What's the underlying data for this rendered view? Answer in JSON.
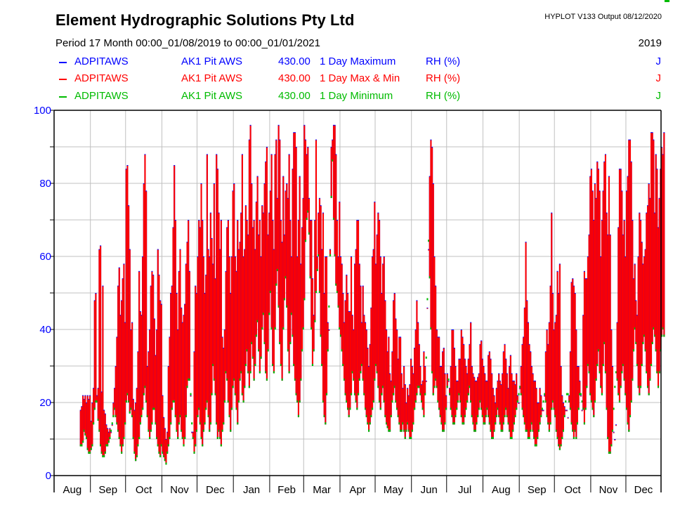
{
  "header": {
    "title": "Element Hydrographic Solutions Pty Ltd",
    "software": "HYPLOT V133  Output 08/12/2020",
    "period": "Period   17 Month  00:00_01/08/2019 to 00:00_01/01/2021",
    "year": "2019"
  },
  "legend": [
    {
      "site": "ADPITAWS",
      "name": "AK1 Pit AWS",
      "variable": "430.00",
      "description": "1 Day Maximum",
      "unit": "RH (%)",
      "flag": "J",
      "color": "#0000ff"
    },
    {
      "site": "ADPITAWS",
      "name": "AK1 Pit AWS",
      "variable": "430.00",
      "description": "1 Day Max & Min",
      "unit": "RH (%)",
      "flag": "J",
      "color": "#ff0000"
    },
    {
      "site": "ADPITAWS",
      "name": "AK1 Pit AWS",
      "variable": "430.00",
      "description": "1 Day Minimum",
      "unit": "RH (%)",
      "flag": "J",
      "color": "#00bb00"
    }
  ],
  "chart_data": {
    "type": "bar",
    "title": "Element Hydrographic Solutions Pty Ltd",
    "xlabel": "",
    "ylabel": "RH (%)",
    "ylim": [
      0,
      100
    ],
    "yticks": [
      0,
      20,
      40,
      60,
      80,
      100
    ],
    "ytick_labels": [
      "0",
      "20",
      "40",
      "60",
      "80",
      "100"
    ],
    "minor_yticks": [
      10,
      30,
      50,
      70,
      90
    ],
    "xlim_days": [
      0,
      518
    ],
    "month_labels": [
      "Aug",
      "Sep",
      "Oct",
      "Nov",
      "Dec",
      "Jan",
      "Feb",
      "Mar",
      "Apr",
      "May",
      "Jun",
      "Jul",
      "Aug",
      "Sep",
      "Oct",
      "Nov",
      "Dec"
    ],
    "month_start_days": [
      0,
      31,
      61,
      92,
      122,
      153,
      184,
      213,
      244,
      274,
      305,
      335,
      366,
      397,
      427,
      458,
      488
    ],
    "grid": true,
    "legend_position": "top",
    "series_colors": {
      "max": "#0000ff",
      "maxmin": "#ff0000",
      "min": "#00bb00"
    },
    "data_start_day": 22,
    "daily_max": [
      18,
      19,
      22,
      21,
      22,
      20,
      22,
      21,
      22,
      15,
      20,
      24,
      48,
      50,
      22,
      24,
      62,
      63,
      23,
      52,
      18,
      17,
      14,
      13,
      12,
      13,
      12,
      14,
      20,
      24,
      30,
      38,
      52,
      57,
      44,
      48,
      54,
      58,
      42,
      84,
      85,
      74,
      62,
      40,
      42,
      21,
      18,
      20,
      24,
      34,
      56,
      45,
      44,
      60,
      80,
      88,
      78,
      30,
      34,
      40,
      52,
      56,
      55,
      43,
      33,
      40,
      62,
      55,
      48,
      47,
      22,
      16,
      13,
      10,
      12,
      30,
      38,
      50,
      52,
      68,
      85,
      70,
      50,
      40,
      56,
      62,
      46,
      42,
      44,
      47,
      58,
      64,
      70,
      56,
      22,
      12,
      12,
      34,
      52,
      50,
      60,
      70,
      68,
      80,
      70,
      60,
      50,
      55,
      88,
      62,
      60,
      72,
      65,
      58,
      80,
      54,
      88,
      84,
      72,
      62,
      70,
      38,
      35,
      40,
      56,
      68,
      70,
      60,
      50,
      60,
      78,
      80,
      60,
      56,
      70,
      62,
      64,
      72,
      88,
      60,
      62,
      74,
      70,
      66,
      92,
      96,
      80,
      68,
      70,
      62,
      75,
      82,
      66,
      70,
      60,
      74,
      72,
      80,
      86,
      90,
      66,
      72,
      78,
      88,
      70,
      62,
      88,
      92,
      76,
      96,
      92,
      70,
      64,
      82,
      66,
      78,
      80,
      76,
      88,
      70,
      60,
      84,
      94,
      94,
      90,
      60,
      70,
      82,
      58,
      68,
      76,
      96,
      92,
      88,
      90,
      76,
      70,
      70,
      54,
      44,
      70,
      92,
      60,
      72,
      76,
      74,
      62,
      72,
      50,
      60,
      60,
      42,
      40,
      62,
      90,
      92,
      96,
      96,
      88,
      70,
      60,
      75,
      60,
      58,
      50,
      42,
      48,
      55,
      50,
      45,
      45,
      60,
      44,
      40,
      58,
      62,
      70,
      70,
      58,
      52,
      42,
      52,
      44,
      42,
      40,
      35,
      30,
      36,
      46,
      60,
      62,
      75,
      58,
      66,
      72,
      70,
      60,
      50,
      58,
      60,
      48,
      40,
      34,
      38,
      28,
      26,
      34,
      48,
      50,
      43,
      40,
      32,
      38,
      38,
      28,
      24,
      30,
      25,
      20,
      24,
      22,
      25,
      32,
      30,
      28,
      35,
      40,
      48,
      42,
      36,
      30,
      25,
      26,
      34,
      30,
      26,
      46,
      62,
      82,
      92,
      90,
      80,
      60,
      52,
      40,
      38,
      38,
      30,
      30,
      34,
      35,
      28,
      22,
      28,
      26,
      24,
      30,
      40,
      40,
      35,
      30,
      26,
      26,
      32,
      32,
      40,
      38,
      36,
      32,
      30,
      28,
      32,
      36,
      42,
      30,
      28,
      27,
      26,
      26,
      27,
      28,
      36,
      37,
      32,
      30,
      28,
      26,
      26,
      33,
      34,
      32,
      28,
      24,
      22,
      20,
      24,
      26,
      28,
      26,
      25,
      28,
      34,
      36,
      32,
      28,
      24,
      30,
      33,
      28,
      26,
      26,
      25,
      28,
      22,
      20,
      24,
      30,
      36,
      38,
      46,
      64,
      48,
      42,
      36,
      34,
      30,
      28,
      26,
      26,
      24,
      20,
      20,
      24,
      22,
      18,
      18,
      22,
      34,
      40,
      36,
      42,
      52,
      72,
      50,
      40,
      42,
      44,
      56,
      50,
      58,
      30,
      22,
      20,
      19,
      18,
      18,
      16,
      22,
      34,
      53,
      54,
      52,
      50,
      40,
      30,
      30,
      26,
      22,
      18,
      44,
      56,
      54,
      54,
      60,
      66,
      82,
      84,
      78,
      70,
      80,
      76,
      86,
      84,
      78,
      60,
      70,
      78,
      86,
      88,
      72,
      66,
      82,
      66,
      40,
      30,
      12,
      10,
      14,
      42,
      68,
      84,
      84,
      78,
      66,
      70,
      60,
      78,
      82,
      92,
      92,
      86,
      70,
      54,
      58,
      48,
      44,
      60,
      72,
      70,
      64,
      58,
      60,
      62,
      72,
      74,
      80,
      76,
      94,
      94,
      92,
      72,
      88,
      84,
      68,
      76,
      84,
      90,
      88,
      94,
      88,
      80,
      76,
      72
    ],
    "daily_min": [
      8,
      8,
      9,
      12,
      11,
      10,
      7,
      6,
      6,
      7,
      8,
      14,
      18,
      20,
      20,
      15,
      12,
      8,
      6,
      5,
      5,
      6,
      8,
      8,
      9,
      10,
      12,
      14,
      16,
      18,
      16,
      14,
      12,
      10,
      8,
      6,
      8,
      10,
      14,
      20,
      22,
      20,
      17,
      18,
      16,
      10,
      6,
      4,
      5,
      8,
      10,
      14,
      16,
      18,
      22,
      24,
      20,
      16,
      12,
      10,
      12,
      14,
      18,
      18,
      14,
      10,
      8,
      6,
      5,
      8,
      6,
      5,
      4,
      3,
      6,
      8,
      10,
      14,
      18,
      20,
      20,
      16,
      12,
      10,
      14,
      16,
      12,
      10,
      8,
      10,
      16,
      24,
      26,
      26,
      22,
      14,
      10,
      6,
      8,
      12,
      16,
      18,
      14,
      10,
      8,
      12,
      14,
      18,
      20,
      16,
      12,
      14,
      22,
      30,
      26,
      22,
      14,
      10,
      12,
      10,
      8,
      12,
      14,
      20,
      28,
      26,
      20,
      16,
      12,
      18,
      24,
      26,
      22,
      18,
      14,
      20,
      26,
      28,
      22,
      20,
      24,
      30,
      34,
      28,
      24,
      28,
      36,
      32,
      26,
      30,
      38,
      42,
      34,
      28,
      32,
      40,
      44,
      36,
      28,
      26,
      34,
      44,
      50,
      40,
      30,
      28,
      40,
      52,
      56,
      46,
      36,
      30,
      26,
      40,
      48,
      54,
      46,
      34,
      28,
      36,
      44,
      38,
      30,
      26,
      22,
      20,
      16,
      20,
      26,
      34,
      40,
      48,
      64,
      70,
      72,
      66,
      54,
      40,
      30,
      34,
      42,
      50,
      56,
      60,
      50,
      38,
      30,
      20,
      16,
      14,
      22,
      34,
      46,
      60,
      76,
      86,
      70,
      60,
      52,
      50,
      46,
      40,
      38,
      34,
      30,
      26,
      22,
      20,
      18,
      16,
      18,
      22,
      28,
      26,
      22,
      20,
      18,
      22,
      26,
      28,
      30,
      26,
      22,
      18,
      16,
      14,
      12,
      14,
      16,
      18,
      20,
      26,
      30,
      28,
      24,
      20,
      18,
      22,
      24,
      20,
      16,
      14,
      13,
      12,
      12,
      16,
      20,
      22,
      24,
      20,
      18,
      16,
      14,
      12,
      12,
      14,
      12,
      10,
      12,
      14,
      12,
      10,
      10,
      12,
      14,
      18,
      20,
      22,
      24,
      24,
      22,
      20,
      18,
      16,
      22,
      32,
      48,
      64,
      54,
      40,
      28,
      22,
      24,
      26,
      24,
      20,
      18,
      16,
      14,
      12,
      12,
      14,
      18,
      24,
      26,
      22,
      18,
      16,
      14,
      14,
      16,
      18,
      20,
      22,
      20,
      16,
      14,
      14,
      16,
      18,
      20,
      22,
      24,
      20,
      16,
      14,
      12,
      12,
      14,
      16,
      18,
      20,
      18,
      16,
      14,
      14,
      16,
      18,
      16,
      14,
      12,
      10,
      10,
      12,
      14,
      16,
      18,
      16,
      14,
      12,
      12,
      14,
      16,
      18,
      16,
      14,
      12,
      10,
      10,
      12,
      14,
      16,
      18,
      20,
      22,
      24,
      22,
      18,
      16,
      14,
      12,
      12,
      10,
      10,
      12,
      14,
      12,
      10,
      8,
      8,
      10,
      12,
      14,
      16,
      18,
      20,
      22,
      20,
      16,
      14,
      12,
      14,
      18,
      20,
      18,
      16,
      12,
      10,
      8,
      7,
      8,
      10,
      12,
      16,
      20,
      22,
      22,
      20,
      18,
      14,
      12,
      10,
      12,
      10,
      14,
      18,
      22,
      22,
      20,
      18,
      14,
      18,
      24,
      30,
      28,
      22,
      20,
      18,
      16,
      20,
      26,
      30,
      34,
      28,
      24,
      22,
      30,
      36,
      28,
      18,
      10,
      6,
      6,
      8,
      12,
      18,
      24,
      28,
      26,
      22,
      20,
      24,
      28,
      30,
      26,
      22,
      18,
      14,
      12,
      16,
      20,
      26,
      34,
      40,
      36,
      30,
      24,
      22,
      24,
      30,
      36,
      38,
      34,
      28,
      24,
      22,
      26,
      30,
      36,
      40,
      38,
      34,
      28,
      24,
      28,
      34,
      38,
      40,
      38
    ]
  }
}
